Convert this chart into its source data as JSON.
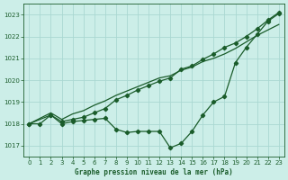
{
  "xlabel": "Graphe pression niveau de la mer (hPa)",
  "background_color": "#cceee8",
  "grid_color": "#aad8d2",
  "line_color": "#1a5c2a",
  "ylim": [
    1016.5,
    1023.5
  ],
  "xlim": [
    -0.5,
    23.5
  ],
  "yticks": [
    1017,
    1018,
    1019,
    1020,
    1021,
    1022,
    1023
  ],
  "xticks": [
    0,
    1,
    2,
    3,
    4,
    5,
    6,
    7,
    8,
    9,
    10,
    11,
    12,
    13,
    14,
    15,
    16,
    17,
    18,
    19,
    20,
    21,
    22,
    23
  ],
  "series1_x": [
    0,
    1,
    2,
    3,
    4,
    5,
    6,
    7,
    8,
    9,
    10,
    11,
    12,
    13,
    14,
    15,
    16,
    17,
    18,
    19,
    20,
    21,
    22,
    23
  ],
  "series1_y": [
    1018.0,
    1018.0,
    1018.4,
    1018.0,
    1018.1,
    1018.15,
    1018.2,
    1018.25,
    1017.75,
    1017.6,
    1017.65,
    1017.65,
    1017.65,
    1016.9,
    1017.1,
    1017.65,
    1018.4,
    1019.0,
    1019.25,
    1020.8,
    1021.5,
    1022.1,
    1022.7,
    1023.05
  ],
  "series2_x": [
    0,
    2,
    3,
    4,
    5,
    6,
    7,
    8,
    9,
    10,
    11,
    12,
    13,
    14,
    15,
    16,
    17,
    18,
    19,
    20,
    21,
    22,
    23
  ],
  "series2_y": [
    1018.0,
    1018.4,
    1018.1,
    1018.2,
    1018.3,
    1018.5,
    1018.7,
    1019.1,
    1019.3,
    1019.55,
    1019.75,
    1019.95,
    1020.1,
    1020.5,
    1020.65,
    1020.95,
    1021.2,
    1021.5,
    1021.7,
    1022.0,
    1022.35,
    1022.75,
    1023.1
  ],
  "series3_x": [
    0,
    2,
    3,
    4,
    5,
    6,
    7,
    8,
    9,
    10,
    11,
    12,
    13,
    14,
    15,
    16,
    17,
    18,
    19,
    20,
    21,
    22,
    23
  ],
  "series3_y": [
    1018.0,
    1018.5,
    1018.2,
    1018.45,
    1018.6,
    1018.85,
    1019.05,
    1019.3,
    1019.5,
    1019.7,
    1019.9,
    1020.1,
    1020.2,
    1020.45,
    1020.6,
    1020.85,
    1021.0,
    1021.2,
    1021.45,
    1021.75,
    1022.05,
    1022.3,
    1022.55
  ]
}
